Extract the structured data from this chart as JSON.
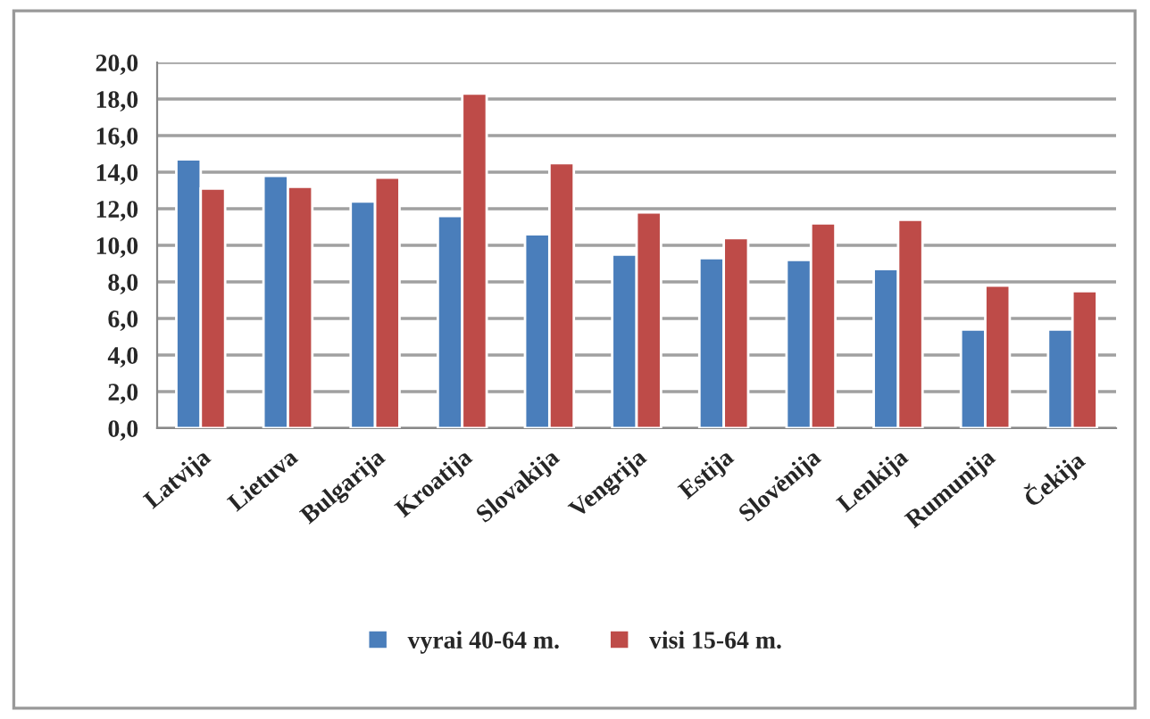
{
  "chart_data": {
    "type": "bar",
    "categories": [
      "Latvija",
      "Lietuva",
      "Bulgarija",
      "Kroatija",
      "Slovakija",
      "Vengrija",
      "Estija",
      "Slovėnija",
      "Lenkija",
      "Rumunija",
      "Čekija"
    ],
    "series": [
      {
        "name": "vyrai 40-64 m.",
        "color": "#4a7ebb",
        "values": [
          14.7,
          13.8,
          12.4,
          11.6,
          10.6,
          9.5,
          9.3,
          9.2,
          8.7,
          5.4,
          5.4
        ]
      },
      {
        "name": "visi 15-64 m.",
        "color": "#be4b48",
        "values": [
          13.1,
          13.2,
          13.7,
          18.3,
          14.5,
          11.8,
          10.4,
          11.2,
          11.4,
          7.8,
          7.5
        ]
      }
    ],
    "ylim": [
      0,
      20
    ],
    "yticks": [
      {
        "value": 0,
        "label": "0,0"
      },
      {
        "value": 2,
        "label": "2,0"
      },
      {
        "value": 4,
        "label": "4,0"
      },
      {
        "value": 6,
        "label": "6,0"
      },
      {
        "value": 8,
        "label": "8,0"
      },
      {
        "value": 10,
        "label": "10,0"
      },
      {
        "value": 12,
        "label": "12,0"
      },
      {
        "value": 14,
        "label": "14,0"
      },
      {
        "value": 16,
        "label": "16,0"
      },
      {
        "value": 18,
        "label": "18,0"
      },
      {
        "value": 20,
        "label": "20,0"
      }
    ],
    "grid": "y",
    "legend": "bottom"
  }
}
